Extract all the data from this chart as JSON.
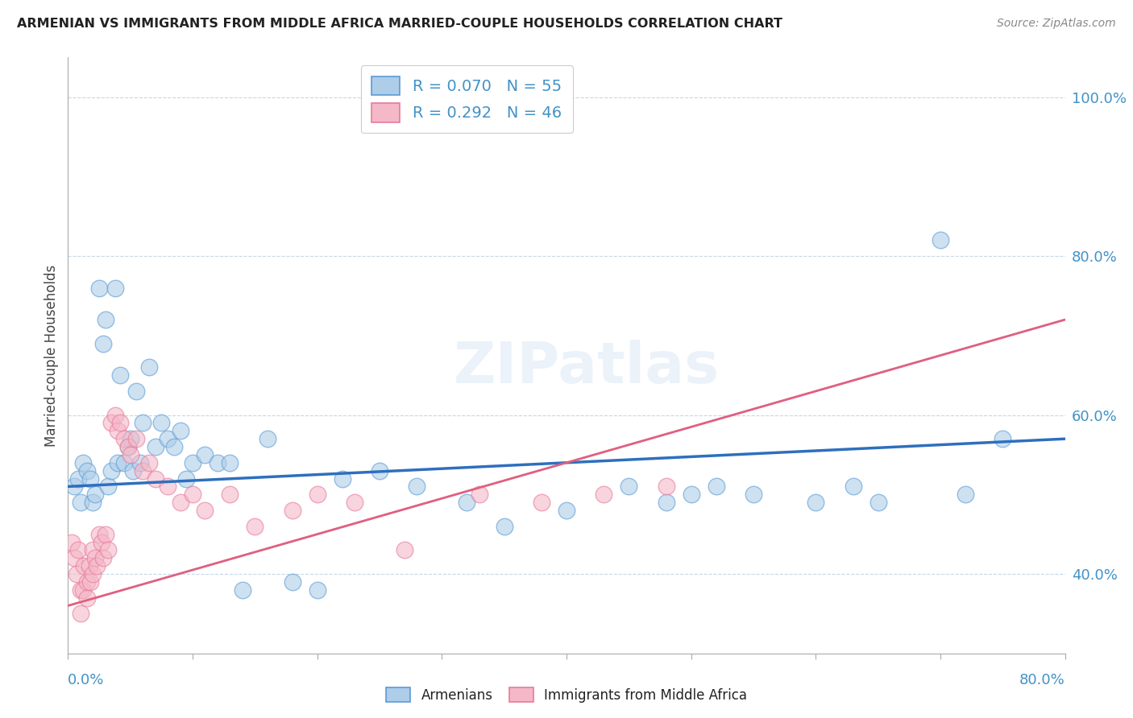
{
  "title": "ARMENIAN VS IMMIGRANTS FROM MIDDLE AFRICA MARRIED-COUPLE HOUSEHOLDS CORRELATION CHART",
  "source": "Source: ZipAtlas.com",
  "ylabel": "Married-couple Households",
  "legend1_label": "R = 0.070   N = 55",
  "legend2_label": "R = 0.292   N = 46",
  "watermark": "ZIPatlas",
  "blue_face_color": "#aecde8",
  "blue_edge_color": "#5b9bd5",
  "pink_face_color": "#f4b8c8",
  "pink_edge_color": "#e87a9a",
  "blue_line_color": "#2e6fbe",
  "pink_line_color": "#e06080",
  "pink_dash_color": "#e8a0b0",
  "armenians_label": "Armenians",
  "immigrants_label": "Immigrants from Middle Africa",
  "xlim": [
    0.0,
    0.8
  ],
  "ylim": [
    0.3,
    1.05
  ],
  "right_yticks": [
    0.4,
    0.6,
    0.8,
    1.0
  ],
  "right_yticklabels": [
    "40.0%",
    "60.0%",
    "80.0%",
    "100.0%"
  ],
  "blue_scatter_x": [
    0.005,
    0.008,
    0.01,
    0.012,
    0.015,
    0.018,
    0.02,
    0.022,
    0.025,
    0.028,
    0.03,
    0.032,
    0.035,
    0.038,
    0.04,
    0.042,
    0.045,
    0.048,
    0.05,
    0.052,
    0.055,
    0.058,
    0.06,
    0.065,
    0.07,
    0.075,
    0.08,
    0.085,
    0.09,
    0.095,
    0.1,
    0.11,
    0.12,
    0.13,
    0.14,
    0.16,
    0.18,
    0.2,
    0.22,
    0.25,
    0.28,
    0.32,
    0.35,
    0.4,
    0.45,
    0.48,
    0.5,
    0.52,
    0.55,
    0.6,
    0.63,
    0.65,
    0.7,
    0.72,
    0.75
  ],
  "blue_scatter_y": [
    0.51,
    0.52,
    0.49,
    0.54,
    0.53,
    0.52,
    0.49,
    0.5,
    0.76,
    0.69,
    0.72,
    0.51,
    0.53,
    0.76,
    0.54,
    0.65,
    0.54,
    0.56,
    0.57,
    0.53,
    0.63,
    0.54,
    0.59,
    0.66,
    0.56,
    0.59,
    0.57,
    0.56,
    0.58,
    0.52,
    0.54,
    0.55,
    0.54,
    0.54,
    0.38,
    0.57,
    0.39,
    0.38,
    0.52,
    0.53,
    0.51,
    0.49,
    0.46,
    0.48,
    0.51,
    0.49,
    0.5,
    0.51,
    0.5,
    0.49,
    0.51,
    0.49,
    0.82,
    0.5,
    0.57
  ],
  "pink_scatter_x": [
    0.003,
    0.005,
    0.007,
    0.008,
    0.01,
    0.01,
    0.012,
    0.013,
    0.015,
    0.015,
    0.017,
    0.018,
    0.02,
    0.02,
    0.022,
    0.023,
    0.025,
    0.027,
    0.028,
    0.03,
    0.032,
    0.035,
    0.038,
    0.04,
    0.042,
    0.045,
    0.048,
    0.05,
    0.055,
    0.06,
    0.065,
    0.07,
    0.08,
    0.09,
    0.1,
    0.11,
    0.13,
    0.15,
    0.18,
    0.2,
    0.23,
    0.27,
    0.33,
    0.38,
    0.43,
    0.48
  ],
  "pink_scatter_y": [
    0.44,
    0.42,
    0.4,
    0.43,
    0.38,
    0.35,
    0.38,
    0.41,
    0.39,
    0.37,
    0.41,
    0.39,
    0.43,
    0.4,
    0.42,
    0.41,
    0.45,
    0.44,
    0.42,
    0.45,
    0.43,
    0.59,
    0.6,
    0.58,
    0.59,
    0.57,
    0.56,
    0.55,
    0.57,
    0.53,
    0.54,
    0.52,
    0.51,
    0.49,
    0.5,
    0.48,
    0.5,
    0.46,
    0.48,
    0.5,
    0.49,
    0.43,
    0.5,
    0.49,
    0.5,
    0.51
  ],
  "blue_trend_x0": 0.0,
  "blue_trend_x1": 0.8,
  "blue_trend_y0": 0.51,
  "blue_trend_y1": 0.57,
  "pink_trend_x0": 0.0,
  "pink_trend_x1": 0.8,
  "pink_trend_y0": 0.36,
  "pink_trend_y1": 0.72
}
